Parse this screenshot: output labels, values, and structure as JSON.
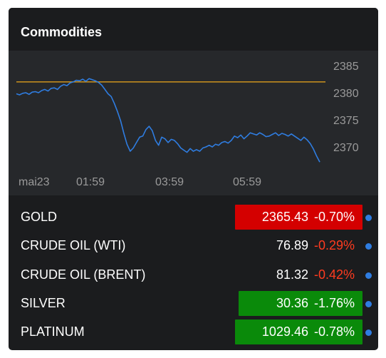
{
  "widget": {
    "title": "Commodities"
  },
  "chart_data": {
    "type": "line",
    "ylim": [
      2366,
      2385
    ],
    "y_ticks": [
      "2385",
      "2380",
      "2375",
      "2370"
    ],
    "x_ticks": [
      "mai23",
      "01:59",
      "03:59",
      "05:59"
    ],
    "reference_line": 2382,
    "series": [
      {
        "values": [
          2379.8,
          2379.6,
          2379.9,
          2380.0,
          2379.7,
          2380.1,
          2380.2,
          2380.0,
          2380.4,
          2380.6,
          2380.3,
          2380.8,
          2380.9,
          2380.6,
          2381.2,
          2381.5,
          2381.3,
          2381.8,
          2382.0,
          2382.3,
          2382.2,
          2382.5,
          2382.1,
          2382.6,
          2382.4,
          2382.2,
          2381.9,
          2381.4,
          2380.6,
          2379.8,
          2379.3,
          2378.0,
          2376.5,
          2374.8,
          2372.5,
          2370.5,
          2369.2,
          2369.8,
          2370.8,
          2371.8,
          2372.0,
          2373.2,
          2373.8,
          2373.0,
          2371.2,
          2370.3,
          2371.8,
          2371.5,
          2370.8,
          2371.4,
          2371.2,
          2370.6,
          2369.8,
          2369.4,
          2369.0,
          2369.7,
          2369.2,
          2369.5,
          2369.2,
          2369.8,
          2370.0,
          2370.3,
          2370.0,
          2370.5,
          2370.3,
          2370.8,
          2371.0,
          2370.7,
          2371.2,
          2372.0,
          2371.7,
          2372.2,
          2371.5,
          2372.0,
          2372.6,
          2372.4,
          2372.2,
          2372.6,
          2372.3,
          2371.9,
          2372.0,
          2372.3,
          2372.6,
          2372.1,
          2372.5,
          2372.3,
          2372.0,
          2372.4,
          2372.0,
          2371.6,
          2371.2,
          2371.8,
          2371.3,
          2370.6,
          2369.6,
          2368.3,
          2367.2
        ]
      }
    ]
  },
  "commodities": [
    {
      "name": "GOLD",
      "price": "2365.43",
      "change": "-0.70%",
      "highlight": "#d40000",
      "change_color": "#ffffff"
    },
    {
      "name": "CRUDE OIL (WTI)",
      "price": "76.89",
      "change": "-0.29%",
      "highlight": "",
      "change_color": "#ff3b1f"
    },
    {
      "name": "CRUDE OIL (BRENT)",
      "price": "81.32",
      "change": "-0.42%",
      "highlight": "",
      "change_color": "#ff3b1f"
    },
    {
      "name": "SILVER",
      "price": "30.36",
      "change": "-1.76%",
      "highlight": "#0a8a0a",
      "change_color": "#ffffff"
    },
    {
      "name": "PLATINUM",
      "price": "1029.46",
      "change": "-0.78%",
      "highlight": "#0a8a0a",
      "change_color": "#ffffff"
    }
  ],
  "colors": {
    "line": "#2f7de1",
    "reference": "#c08a1f",
    "indicator_dot": "#2f7de1",
    "axis_text": "#9a9a9a"
  }
}
